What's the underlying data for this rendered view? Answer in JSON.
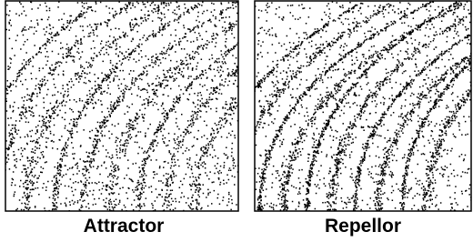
{
  "panels": [
    {
      "label": "Attractor"
    },
    {
      "label": "Repellor"
    }
  ]
}
